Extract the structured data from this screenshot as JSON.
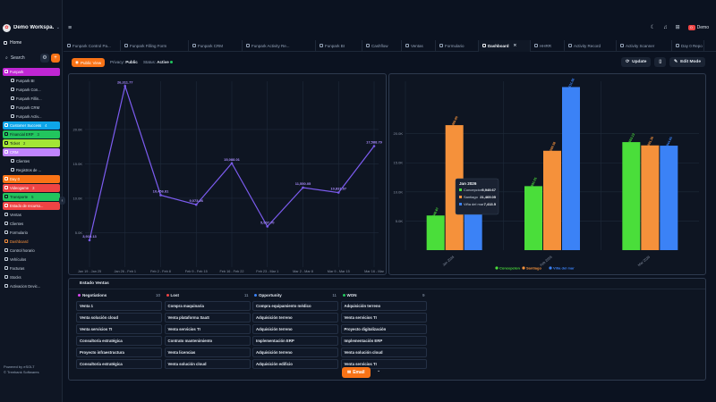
{
  "workspace": {
    "logo": "✿",
    "name": "Demo Workspa..."
  },
  "sidebar": {
    "home": "Home",
    "search": "Search",
    "items": [
      {
        "label": "Funpark",
        "count": "",
        "bg": "#c026d3",
        "fg": "#ffffff",
        "style": "group"
      },
      {
        "label": "Funpark BI",
        "count": "",
        "style": "indent"
      },
      {
        "label": "Funpark Con...",
        "count": "",
        "style": "indent"
      },
      {
        "label": "Funpark Fillin...",
        "count": "",
        "style": "indent"
      },
      {
        "label": "Funpark CRM",
        "count": "",
        "style": "indent"
      },
      {
        "label": "Funpark Activ...",
        "count": "",
        "style": "indent"
      },
      {
        "label": "Customer Success",
        "count": "4",
        "bg": "#0ea5e9",
        "fg": "#ffffff",
        "style": "group"
      },
      {
        "label": "Financial ERP",
        "count": "3",
        "bg": "#22c55e",
        "fg": "#0b1220",
        "style": "group"
      },
      {
        "label": "Ticket",
        "count": "2",
        "bg": "#a3e635",
        "fg": "#0b1220",
        "style": "group"
      },
      {
        "label": "CRM",
        "count": "",
        "bg": "#c084fc",
        "fg": "#ffffff",
        "style": "group"
      },
      {
        "label": "Clientes",
        "count": "",
        "style": "indent"
      },
      {
        "label": "Registros de ...",
        "count": "",
        "style": "indent"
      },
      {
        "label": "Day 0",
        "count": "",
        "bg": "#f97316",
        "fg": "#ffffff",
        "style": "group"
      },
      {
        "label": "Videogame",
        "count": "3",
        "bg": "#ef4444",
        "fg": "#ffffff",
        "style": "group"
      },
      {
        "label": "Transporte",
        "count": "5",
        "bg": "#22c55e",
        "fg": "#0b1220",
        "style": "group"
      },
      {
        "label": "Estado de recurso...",
        "count": "",
        "bg": "#ef4444",
        "fg": "#ffffff",
        "style": "group"
      },
      {
        "label": "Ventas",
        "count": "",
        "style": "plain"
      },
      {
        "label": "Clientes",
        "count": "",
        "style": "plain"
      },
      {
        "label": "Formulario",
        "count": "",
        "style": "plain"
      },
      {
        "label": "Dashboard",
        "count": "",
        "style": "active"
      },
      {
        "label": "Control horario",
        "count": "",
        "style": "plain"
      },
      {
        "label": "Vehículos",
        "count": "",
        "style": "plain"
      },
      {
        "label": "Facturas",
        "count": "",
        "style": "plain"
      },
      {
        "label": "Stocks",
        "count": "",
        "style": "plain"
      },
      {
        "label": "Activacion Devic...",
        "count": "",
        "style": "plain"
      }
    ],
    "footer_line1": "Powered by eSOLT",
    "footer_line2": "© Treebank Softwares",
    "collapse_glyph": "‹"
  },
  "topbar": {
    "menu": "≡",
    "user": "Demo",
    "user_initial": "D"
  },
  "tabs": [
    {
      "label": "Funpark Control Pa...",
      "active": false
    },
    {
      "label": "Funpark Filling Form",
      "active": false
    },
    {
      "label": "Funpark CRM",
      "active": false
    },
    {
      "label": "Funpark Activity Re...",
      "active": false
    },
    {
      "label": "Funpark BI",
      "active": false
    },
    {
      "label": "Cashflow",
      "active": false
    },
    {
      "label": "Ventas",
      "active": false
    },
    {
      "label": "Formulario",
      "active": false
    },
    {
      "label": "Dashboard",
      "active": true
    },
    {
      "label": "HHRR",
      "active": false
    },
    {
      "label": "Activity Record",
      "active": false
    },
    {
      "label": "Activity Scanner",
      "active": false
    },
    {
      "label": "Day 0 Repo",
      "active": false
    }
  ],
  "toolbar": {
    "view_badge": "Public View",
    "privacy_label": "Privacy:",
    "privacy_value": "Public",
    "status_label": "Status:",
    "status_value": "Active",
    "update": "Update",
    "edit_mode": "Edit Mode"
  },
  "line_chart_data": {
    "type": "line",
    "color": "#7c5cf0",
    "categories": [
      "Jan 19 - Jan 25",
      "Jan 26 - Feb 1",
      "Feb 2 - Feb 8",
      "Feb 9 - Feb 15",
      "Feb 16 - Feb 22",
      "Feb 23 - Mar 1",
      "Mar 2 - Mar 8",
      "Mar 9 - Mar 15",
      "Mar 16 - Mar"
    ],
    "values": [
      3910.13,
      26311.77,
      10456.81,
      9073.26,
      15088.01,
      5907.7,
      11550.05,
      10831.07,
      17588.79
    ],
    "labels": [
      "3,910.13",
      "26,311.77",
      "10,456.81",
      "9,073.26",
      "15,088.01",
      "5,907.70",
      "11,550.05",
      "10,831.07",
      "17,588.79"
    ],
    "yticks": [
      "20.0K",
      "15.0K",
      "10.0K",
      "5.0K"
    ],
    "ylim": [
      0,
      27000
    ]
  },
  "bar_chart_data": {
    "type": "bar",
    "categories": [
      "Jan 2026",
      "Feb 2026",
      "Mar 2026"
    ],
    "series": [
      {
        "name": "Concepcion",
        "color": "#4ade3a",
        "values": [
          5949.67,
          10991.01,
          18553.12
        ]
      },
      {
        "name": "Santiago",
        "color": "#f5913b",
        "values": [
          21469.05,
          17069.38,
          17991.3
        ]
      },
      {
        "name": "Viña del mar",
        "color": "#3b82f6",
        "values": [
          7413.5,
          28011.86,
          17944.65
        ]
      }
    ],
    "data_labels": [
      [
        "5,949.67",
        "21,469.05",
        "7,413.50"
      ],
      [
        "10,991.01",
        "17,069.38",
        "28,011.86"
      ],
      [
        "18,553.12",
        "17,991.30",
        "17,944.65"
      ]
    ],
    "yticks": [
      "20.0K",
      "15.0K",
      "10.0K",
      "5.0K"
    ],
    "ylim": [
      0,
      29000
    ],
    "tooltip": {
      "title": "Jan 2026",
      "rows": [
        {
          "name": "Concepcion",
          "value": "5,949.67"
        },
        {
          "name": "Santiago",
          "value": "21,469.05"
        },
        {
          "name": "Viña del mar",
          "value": "7,413.5"
        }
      ]
    }
  },
  "kanban": {
    "title": "Estado Ventas",
    "columns": [
      {
        "name": "Negotiations",
        "count": "10",
        "color": "#d946ef",
        "cards": [
          "Venta 1",
          "Venta solución cloud",
          "Venta servicios TI",
          "Consultoría estratégica",
          "Proyecto infraestructura",
          "Consultoría estratégica"
        ]
      },
      {
        "name": "Lost",
        "count": "11",
        "color": "#ef4444",
        "cards": [
          "Compra maquinaria",
          "Venta plataforma SaaS",
          "Venta servicios TI",
          "Contrato mantenimiento",
          "Venta licencias",
          "Venta solución cloud"
        ]
      },
      {
        "name": "Opportunity",
        "count": "11",
        "color": "#3b82f6",
        "cards": [
          "Compra equipamiento médico",
          "Adquisición terreno",
          "Adquisición terreno",
          "Implementación ERP",
          "Adquisición terreno",
          "Adquisición edificio"
        ]
      },
      {
        "name": "WON",
        "count": "9",
        "color": "#22c55e",
        "cards": [
          "Adquisición terreno",
          "Venta servicios TI",
          "Proyecto digitalización",
          "Implementación ERP",
          "Venta solución cloud",
          "Venta servicios TI"
        ]
      }
    ]
  },
  "floating": {
    "email": "Email",
    "chevron": "⌄"
  }
}
